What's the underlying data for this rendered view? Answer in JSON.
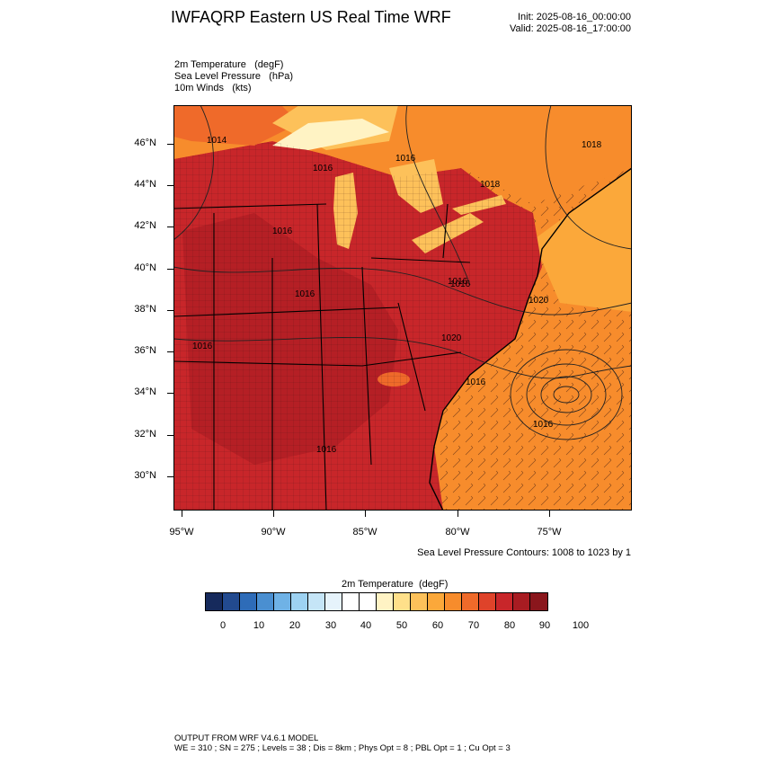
{
  "header": {
    "title": "IWFAQRP Eastern US Real Time WRF",
    "init": "Init: 2025-08-16_00:00:00",
    "valid": "Valid: 2025-08-16_17:00:00"
  },
  "fields": [
    {
      "name": "2m Temperature",
      "unit": "(degF)"
    },
    {
      "name": "Sea Level Pressure",
      "unit": "(hPa)"
    },
    {
      "name": "10m Winds",
      "unit": "(kts)"
    }
  ],
  "axes": {
    "lat_labels": [
      "46°N",
      "44°N",
      "42°N",
      "40°N",
      "38°N",
      "36°N",
      "34°N",
      "32°N",
      "30°N"
    ],
    "lon_labels": [
      "95°W",
      "90°W",
      "85°W",
      "80°W",
      "75°W"
    ]
  },
  "pressure_labels": [
    "1014",
    "1016",
    "1016",
    "1016",
    "1016",
    "1018",
    "1018",
    "1016",
    "1016",
    "1020",
    "1020",
    "1016",
    "1016",
    "1016",
    "1016"
  ],
  "contour_note": "Sea Level Pressure Contours: 1008 to 1023 by 1",
  "colorbar": {
    "title": "2m Temperature  (degF)",
    "labels": [
      "0",
      "10",
      "20",
      "30",
      "40",
      "50",
      "60",
      "70",
      "80",
      "90",
      "100"
    ],
    "colors": [
      "#162a5c",
      "#224a8f",
      "#2e6cb8",
      "#4a8fd1",
      "#6fb2e6",
      "#9dd2f2",
      "#c5e5f7",
      "#e6f3fb",
      "#ffffff",
      "#ffffff",
      "#fff3c4",
      "#ffe08a",
      "#fdc15a",
      "#fba83a",
      "#f78c2c",
      "#ef6a2a",
      "#df432a",
      "#c8262a",
      "#a81c22",
      "#8a161c"
    ]
  },
  "footer": {
    "line1": "OUTPUT FROM WRF V4.6.1 MODEL",
    "line2": "WE = 310 ; SN = 275 ; Levels = 38 ; Dis = 8km ; Phys Opt = 8 ; PBL Opt = 1 ; Cu Opt = 3"
  }
}
